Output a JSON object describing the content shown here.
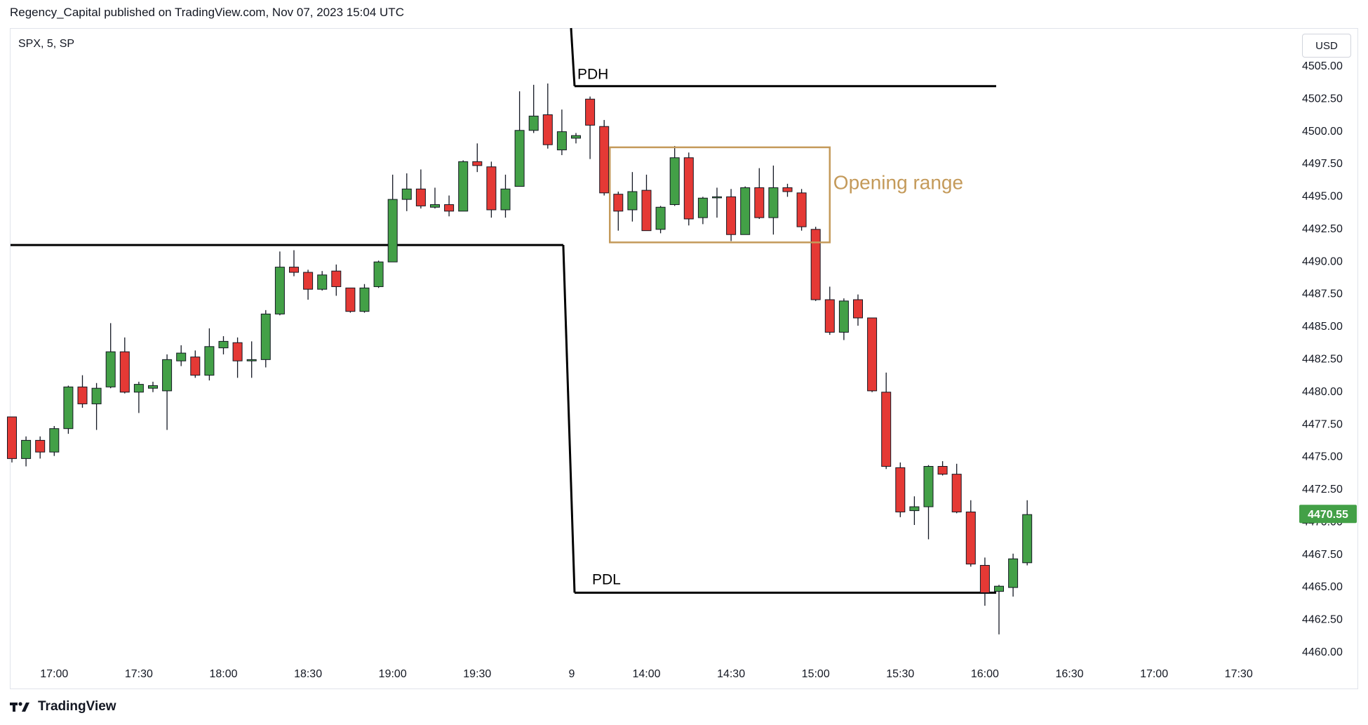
{
  "header": {
    "publisher_line": "Regency_Capital published on TradingView.com, Nov 07, 2023 15:04 UTC"
  },
  "symbol_line": "SPX, 5, SP",
  "currency_button": "USD",
  "footer": {
    "brand": "TradingView"
  },
  "colors": {
    "up": "#43a047",
    "down": "#e53935",
    "wick": "#131722",
    "level": "#000000",
    "range_box": "#c49a5a",
    "last_price_bg": "#43a047"
  },
  "chart_data": {
    "type": "candlestick",
    "symbol": "SPX",
    "interval": "5",
    "ylim": [
      4460,
      4505
    ],
    "y_ticks": [
      "4460.00",
      "4462.50",
      "4465.00",
      "4467.50",
      "4470.00",
      "4472.50",
      "4475.00",
      "4477.50",
      "4480.00",
      "4482.50",
      "4485.00",
      "4487.50",
      "4490.00",
      "4492.50",
      "4495.00",
      "4497.50",
      "4500.00",
      "4502.50",
      "4505.00"
    ],
    "x_ticks": [
      {
        "label": "17:00",
        "bar": 3
      },
      {
        "label": "17:30",
        "bar": 9
      },
      {
        "label": "18:00",
        "bar": 15
      },
      {
        "label": "18:30",
        "bar": 21
      },
      {
        "label": "19:00",
        "bar": 27
      },
      {
        "label": "19:30",
        "bar": 33
      },
      {
        "label": "9",
        "bar": 39.7
      },
      {
        "label": "14:00",
        "bar": 45
      },
      {
        "label": "14:30",
        "bar": 51
      },
      {
        "label": "15:00",
        "bar": 57
      },
      {
        "label": "15:30",
        "bar": 63
      },
      {
        "label": "16:00",
        "bar": 69
      },
      {
        "label": "16:30",
        "bar": 75
      },
      {
        "label": "17:00",
        "bar": 81
      },
      {
        "label": "17:30",
        "bar": 87
      }
    ],
    "last_price": "4470.55",
    "candles": [
      {
        "o": 4478.0,
        "h": 4478.0,
        "l": 4474.5,
        "c": 4474.8
      },
      {
        "o": 4474.8,
        "h": 4476.5,
        "l": 4474.2,
        "c": 4476.2
      },
      {
        "o": 4476.2,
        "h": 4476.5,
        "l": 4474.8,
        "c": 4475.3
      },
      {
        "o": 4475.3,
        "h": 4477.3,
        "l": 4475.0,
        "c": 4477.1
      },
      {
        "o": 4477.1,
        "h": 4480.4,
        "l": 4476.7,
        "c": 4480.3
      },
      {
        "o": 4480.3,
        "h": 4481.2,
        "l": 4478.7,
        "c": 4479.0
      },
      {
        "o": 4479.0,
        "h": 4480.6,
        "l": 4477.0,
        "c": 4480.2
      },
      {
        "o": 4480.3,
        "h": 4485.2,
        "l": 4480.2,
        "c": 4483.0
      },
      {
        "o": 4483.0,
        "h": 4484.1,
        "l": 4479.8,
        "c": 4479.9
      },
      {
        "o": 4479.9,
        "h": 4480.7,
        "l": 4478.3,
        "c": 4480.5
      },
      {
        "o": 4480.2,
        "h": 4480.7,
        "l": 4479.9,
        "c": 4480.4
      },
      {
        "o": 4480.0,
        "h": 4482.8,
        "l": 4477.0,
        "c": 4482.4
      },
      {
        "o": 4482.3,
        "h": 4483.5,
        "l": 4481.9,
        "c": 4482.9
      },
      {
        "o": 4482.6,
        "h": 4483.1,
        "l": 4481.0,
        "c": 4481.2
      },
      {
        "o": 4481.2,
        "h": 4484.8,
        "l": 4480.8,
        "c": 4483.4
      },
      {
        "o": 4483.3,
        "h": 4484.2,
        "l": 4482.8,
        "c": 4483.8
      },
      {
        "o": 4483.7,
        "h": 4484.1,
        "l": 4481.0,
        "c": 4482.3
      },
      {
        "o": 4482.3,
        "h": 4483.8,
        "l": 4481.0,
        "c": 4482.4
      },
      {
        "o": 4482.4,
        "h": 4486.2,
        "l": 4481.8,
        "c": 4485.9
      },
      {
        "o": 4485.9,
        "h": 4490.7,
        "l": 4485.8,
        "c": 4489.5
      },
      {
        "o": 4489.5,
        "h": 4490.8,
        "l": 4488.8,
        "c": 4489.1
      },
      {
        "o": 4489.1,
        "h": 4489.3,
        "l": 4487.0,
        "c": 4487.8
      },
      {
        "o": 4487.8,
        "h": 4489.2,
        "l": 4487.7,
        "c": 4488.9
      },
      {
        "o": 4489.2,
        "h": 4489.7,
        "l": 4487.3,
        "c": 4488.0
      },
      {
        "o": 4487.9,
        "h": 4487.9,
        "l": 4486.0,
        "c": 4486.1
      },
      {
        "o": 4486.1,
        "h": 4488.2,
        "l": 4486.0,
        "c": 4487.9
      },
      {
        "o": 4488.0,
        "h": 4490.0,
        "l": 4487.9,
        "c": 4489.9
      },
      {
        "o": 4489.9,
        "h": 4496.6,
        "l": 4489.9,
        "c": 4494.7
      },
      {
        "o": 4494.7,
        "h": 4496.7,
        "l": 4493.8,
        "c": 4495.5
      },
      {
        "o": 4495.5,
        "h": 4497.0,
        "l": 4494.0,
        "c": 4494.2
      },
      {
        "o": 4494.1,
        "h": 4495.6,
        "l": 4494.0,
        "c": 4494.3
      },
      {
        "o": 4494.3,
        "h": 4495.0,
        "l": 4493.4,
        "c": 4493.8
      },
      {
        "o": 4493.8,
        "h": 4497.7,
        "l": 4493.8,
        "c": 4497.6
      },
      {
        "o": 4497.6,
        "h": 4499.0,
        "l": 4496.8,
        "c": 4497.3
      },
      {
        "o": 4497.2,
        "h": 4497.6,
        "l": 4493.3,
        "c": 4493.9
      },
      {
        "o": 4493.9,
        "h": 4496.6,
        "l": 4493.3,
        "c": 4495.5
      },
      {
        "o": 4495.7,
        "h": 4503.0,
        "l": 4495.7,
        "c": 4500.0
      },
      {
        "o": 4500.0,
        "h": 4503.5,
        "l": 4499.8,
        "c": 4501.1
      },
      {
        "o": 4501.2,
        "h": 4503.6,
        "l": 4498.6,
        "c": 4498.9
      },
      {
        "o": 4498.5,
        "h": 4501.6,
        "l": 4498.1,
        "c": 4499.9
      },
      {
        "o": 4499.4,
        "h": 4499.8,
        "l": 4499.0,
        "c": 4499.6
      },
      {
        "o": 4502.4,
        "h": 4502.6,
        "l": 4497.8,
        "c": 4500.4
      },
      {
        "o": 4500.3,
        "h": 4500.8,
        "l": 4495.0,
        "c": 4495.2
      },
      {
        "o": 4495.1,
        "h": 4495.3,
        "l": 4492.3,
        "c": 4493.8
      },
      {
        "o": 4493.9,
        "h": 4496.8,
        "l": 4493.0,
        "c": 4495.3
      },
      {
        "o": 4495.4,
        "h": 4496.6,
        "l": 4492.3,
        "c": 4492.3
      },
      {
        "o": 4492.4,
        "h": 4494.2,
        "l": 4492.1,
        "c": 4494.1
      },
      {
        "o": 4494.3,
        "h": 4498.8,
        "l": 4494.2,
        "c": 4497.9
      },
      {
        "o": 4497.9,
        "h": 4498.3,
        "l": 4492.7,
        "c": 4493.2
      },
      {
        "o": 4493.3,
        "h": 4494.9,
        "l": 4492.8,
        "c": 4494.8
      },
      {
        "o": 4494.9,
        "h": 4495.6,
        "l": 4493.3,
        "c": 4494.9
      },
      {
        "o": 4494.9,
        "h": 4495.5,
        "l": 4491.5,
        "c": 4492.0
      },
      {
        "o": 4492.0,
        "h": 4495.7,
        "l": 4492.0,
        "c": 4495.6
      },
      {
        "o": 4495.6,
        "h": 4497.1,
        "l": 4493.2,
        "c": 4493.3
      },
      {
        "o": 4493.3,
        "h": 4497.3,
        "l": 4492.0,
        "c": 4495.6
      },
      {
        "o": 4495.6,
        "h": 4495.9,
        "l": 4494.9,
        "c": 4495.3
      },
      {
        "o": 4495.2,
        "h": 4495.5,
        "l": 4492.3,
        "c": 4492.6
      },
      {
        "o": 4492.4,
        "h": 4492.6,
        "l": 4486.9,
        "c": 4487.0
      },
      {
        "o": 4487.0,
        "h": 4488.0,
        "l": 4484.3,
        "c": 4484.5
      },
      {
        "o": 4484.5,
        "h": 4487.1,
        "l": 4483.9,
        "c": 4486.9
      },
      {
        "o": 4487.0,
        "h": 4487.4,
        "l": 4485.0,
        "c": 4485.6
      },
      {
        "o": 4485.6,
        "h": 4485.6,
        "l": 4479.9,
        "c": 4480.0
      },
      {
        "o": 4479.9,
        "h": 4481.4,
        "l": 4474.0,
        "c": 4474.2
      },
      {
        "o": 4474.1,
        "h": 4474.5,
        "l": 4470.3,
        "c": 4470.7
      },
      {
        "o": 4470.8,
        "h": 4471.9,
        "l": 4469.7,
        "c": 4471.1
      },
      {
        "o": 4471.1,
        "h": 4474.3,
        "l": 4468.6,
        "c": 4474.2
      },
      {
        "o": 4474.2,
        "h": 4474.6,
        "l": 4473.5,
        "c": 4473.6
      },
      {
        "o": 4473.6,
        "h": 4474.4,
        "l": 4470.6,
        "c": 4470.7
      },
      {
        "o": 4470.7,
        "h": 4471.6,
        "l": 4466.5,
        "c": 4466.7
      },
      {
        "o": 4466.6,
        "h": 4467.2,
        "l": 4463.5,
        "c": 4464.5
      },
      {
        "o": 4464.6,
        "h": 4465.1,
        "l": 4461.3,
        "c": 4465.0
      },
      {
        "o": 4464.9,
        "h": 4467.5,
        "l": 4464.2,
        "c": 4467.1
      },
      {
        "o": 4466.8,
        "h": 4471.6,
        "l": 4466.6,
        "c": 4470.5
      }
    ],
    "annotations": [
      {
        "label": "PDH",
        "value": 4503.4,
        "from_bar": 39.9,
        "to_bar": 69.8
      },
      {
        "label": "PDL",
        "value": 4464.5,
        "from_bar": 39.9,
        "to_bar": 69.8
      },
      {
        "label": "Opening range",
        "high": 4498.7,
        "low": 4491.4,
        "from_bar": 42.4,
        "to_bar": 58.0
      },
      {
        "label": "",
        "value": 4491.2,
        "from_bar": -0.1,
        "to_bar": 39.1
      }
    ]
  }
}
